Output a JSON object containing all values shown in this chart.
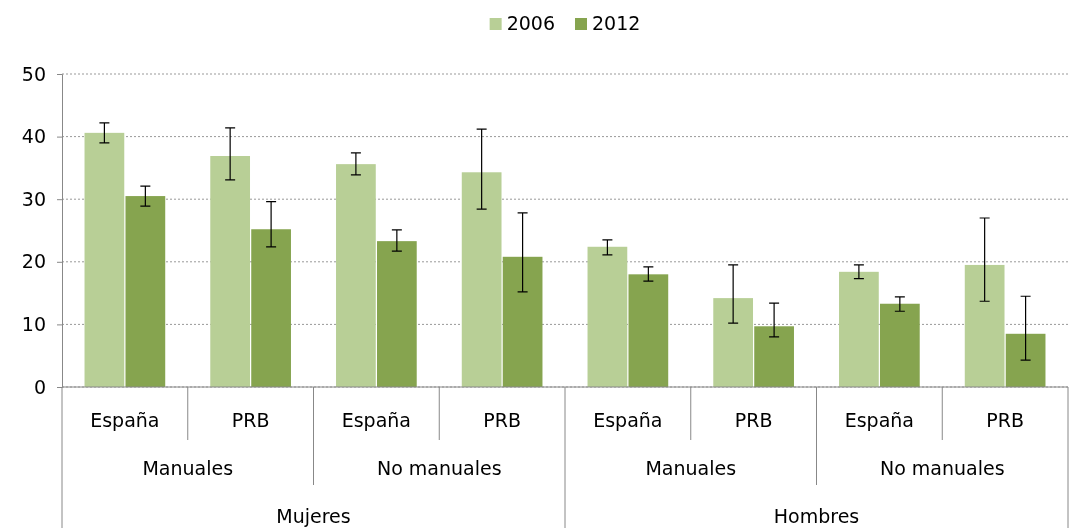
{
  "chart_data": {
    "type": "bar",
    "categories": [
      "España",
      "PRB",
      "España",
      "PRB",
      "España",
      "PRB",
      "España",
      "PRB"
    ],
    "series": [
      {
        "name": "2006",
        "color": "#b8cf96",
        "values": [
          40.6,
          36.9,
          35.6,
          34.3,
          22.4,
          14.2,
          18.4,
          19.5
        ],
        "errors": [
          [
            39.0,
            42.2
          ],
          [
            33.1,
            41.4
          ],
          [
            33.9,
            37.4
          ],
          [
            28.4,
            41.2
          ],
          [
            21.1,
            23.5
          ],
          [
            10.2,
            19.5
          ],
          [
            17.3,
            19.5
          ],
          [
            13.7,
            27.0
          ]
        ]
      },
      {
        "name": "2012",
        "color": "#86a44f",
        "values": [
          30.5,
          25.2,
          23.3,
          20.8,
          18.0,
          9.7,
          13.3,
          8.5
        ],
        "errors": [
          [
            28.9,
            32.1
          ],
          [
            22.4,
            29.6
          ],
          [
            21.7,
            25.1
          ],
          [
            15.2,
            27.8
          ],
          [
            16.9,
            19.2
          ],
          [
            8.0,
            13.4
          ],
          [
            12.1,
            14.4
          ],
          [
            4.3,
            14.5
          ]
        ]
      }
    ],
    "annotations": [
      "Manuales",
      "No manuales",
      "Manuales",
      "No manuales",
      "Mujeres",
      "Hombres"
    ],
    "ylim": [
      0,
      50
    ],
    "yticks": [
      0,
      10,
      20,
      30,
      40,
      50
    ],
    "grid": "y",
    "legend": "top"
  }
}
